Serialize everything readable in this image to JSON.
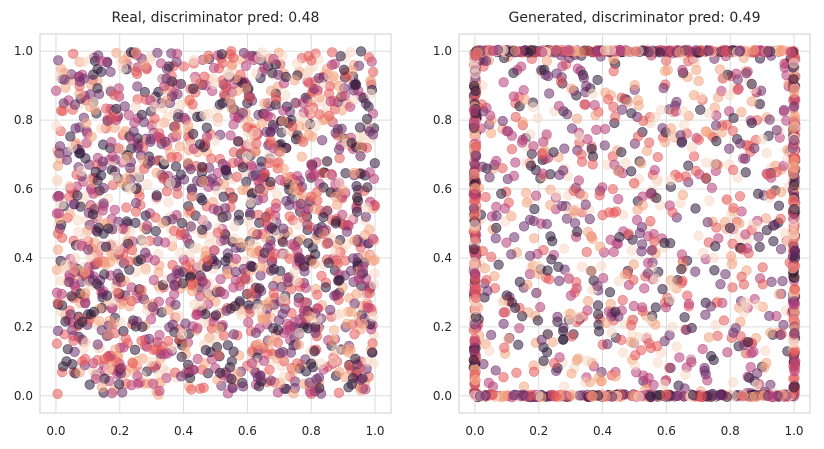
{
  "chart_data": [
    {
      "type": "scatter",
      "title": "Real, discriminator pred: 0.48",
      "xlabel": "",
      "ylabel": "",
      "xlim": [
        -0.05,
        1.05
      ],
      "ylim": [
        -0.05,
        1.05
      ],
      "xticks": [
        "0.0",
        "0.2",
        "0.4",
        "0.6",
        "0.8",
        "1.0"
      ],
      "yticks": [
        "0.0",
        "0.2",
        "0.4",
        "0.6",
        "0.8",
        "1.0"
      ],
      "grid": true,
      "legend": "none",
      "point_alpha": 0.55,
      "colormap": [
        "#f7d9c6",
        "#f3a47f",
        "#e6595a",
        "#b8407a",
        "#6e2f6b",
        "#2b1a38"
      ],
      "distribution": "uniform in [0,1]x[0,1]",
      "n_points": 2000,
      "points_sample": [
        [
          0.02,
          0.98
        ],
        [
          0.12,
          0.95
        ],
        [
          0.31,
          0.97
        ],
        [
          0.55,
          0.99
        ],
        [
          0.78,
          0.96
        ],
        [
          0.97,
          0.98
        ],
        [
          0.05,
          0.74
        ],
        [
          0.22,
          0.81
        ],
        [
          0.43,
          0.68
        ],
        [
          0.61,
          0.77
        ],
        [
          0.84,
          0.72
        ],
        [
          0.99,
          0.66
        ],
        [
          0.03,
          0.45
        ],
        [
          0.18,
          0.52
        ],
        [
          0.39,
          0.48
        ],
        [
          0.57,
          0.41
        ],
        [
          0.76,
          0.55
        ],
        [
          0.95,
          0.47
        ],
        [
          0.07,
          0.21
        ],
        [
          0.26,
          0.28
        ],
        [
          0.44,
          0.18
        ],
        [
          0.63,
          0.25
        ],
        [
          0.81,
          0.31
        ],
        [
          0.98,
          0.19
        ],
        [
          0.01,
          0.02
        ],
        [
          0.15,
          0.06
        ],
        [
          0.35,
          0.01
        ],
        [
          0.52,
          0.04
        ],
        [
          0.73,
          0.03
        ],
        [
          0.96,
          0.05
        ]
      ]
    },
    {
      "type": "scatter",
      "title": "Generated, discriminator pred: 0.49",
      "xlabel": "",
      "ylabel": "",
      "xlim": [
        -0.05,
        1.05
      ],
      "ylim": [
        -0.05,
        1.05
      ],
      "xticks": [
        "0.0",
        "0.2",
        "0.4",
        "0.6",
        "0.8",
        "1.0"
      ],
      "yticks": [
        "0.0",
        "0.2",
        "0.4",
        "0.6",
        "0.8",
        "1.0"
      ],
      "grid": true,
      "legend": "none",
      "point_alpha": 0.55,
      "colormap": [
        "#f7d9c6",
        "#f3a47f",
        "#e6595a",
        "#b8407a",
        "#6e2f6b",
        "#2b1a38"
      ],
      "distribution": "uniform interior plus dense clusters on the four edges x=0, x=1, y=0, y=1",
      "n_points": 2000,
      "points_sample": [
        [
          0.0,
          1.0
        ],
        [
          0.0,
          0.62
        ],
        [
          0.0,
          0.3
        ],
        [
          0.0,
          0.0
        ],
        [
          1.0,
          1.0
        ],
        [
          1.0,
          0.55
        ],
        [
          1.0,
          0.12
        ],
        [
          0.21,
          1.0
        ],
        [
          0.58,
          1.0
        ],
        [
          0.87,
          1.0
        ],
        [
          0.33,
          0.0
        ],
        [
          0.71,
          0.0
        ],
        [
          0.18,
          0.77
        ],
        [
          0.45,
          0.83
        ],
        [
          0.62,
          0.64
        ],
        [
          0.84,
          0.71
        ],
        [
          0.27,
          0.41
        ],
        [
          0.52,
          0.36
        ],
        [
          0.73,
          0.44
        ],
        [
          0.92,
          0.39
        ],
        [
          0.12,
          0.15
        ],
        [
          0.38,
          0.22
        ],
        [
          0.66,
          0.18
        ],
        [
          0.89,
          0.27
        ]
      ]
    }
  ]
}
